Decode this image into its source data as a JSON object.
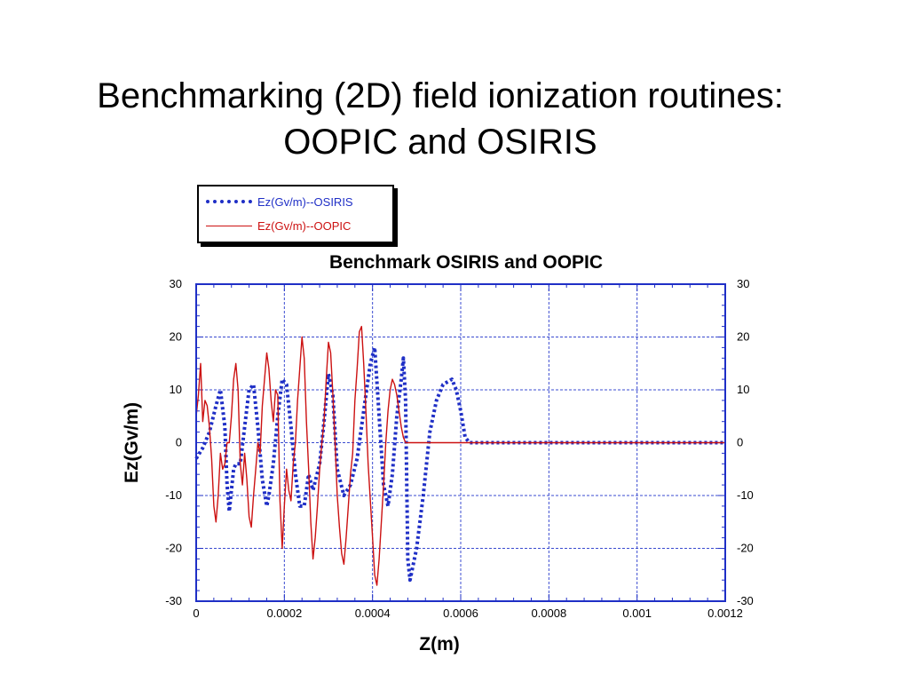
{
  "slide": {
    "title_line1": "Benchmarking (2D) field ionization routines:",
    "title_line2": "OOPIC and OSIRIS"
  },
  "legend": {
    "osiris_label": "Ez(Gv/m)--OSIRIS",
    "oopic_label": "Ez(Gv/m)--OOPIC"
  },
  "colors": {
    "osiris": "#1f2fc6",
    "oopic": "#cc1111",
    "grid": "#3a4bd0",
    "frame": "#1f2fc6"
  },
  "chart_data": {
    "type": "line",
    "title": "Benchmark OSIRIS and OOPIC",
    "xlabel": "Z(m)",
    "ylabel": "Ez(Gv/m)",
    "xlim": [
      0,
      0.0012
    ],
    "ylim": [
      -30,
      30
    ],
    "xticks": [
      "0",
      "0.0002",
      "0.0004",
      "0.0006",
      "0.0008",
      "0.001",
      "0.0012"
    ],
    "yticks": [
      "30",
      "20",
      "10",
      "0",
      "-10",
      "-20",
      "-30"
    ],
    "grid": true,
    "legend_position": "top-left",
    "series": [
      {
        "name": "Ez(Gv/m)--OSIRIS",
        "style": "dotted",
        "x": [
          0,
          1.5e-05,
          3e-05,
          4.5e-05,
          5.5e-05,
          6.5e-05,
          7e-05,
          7.5e-05,
          8e-05,
          8.5e-05,
          9e-05,
          0.0001,
          0.00011,
          0.00012,
          0.00013,
          0.00014,
          0.00015,
          0.00016,
          0.000165,
          0.000175,
          0.000185,
          0.000195,
          0.000205,
          0.000215,
          0.000225,
          0.000235,
          0.000245,
          0.000255,
          0.000265,
          0.00028,
          0.00029,
          0.0003,
          0.00031,
          0.00032,
          0.000335,
          0.00035,
          0.000365,
          0.00038,
          0.000395,
          0.000405,
          0.000415,
          0.000425,
          0.000435,
          0.000445,
          0.000455,
          0.000465,
          0.00047,
          0.000475,
          0.00048,
          0.000485,
          0.0005,
          0.000515,
          0.00053,
          0.000545,
          0.00056,
          0.00058,
          0.00059,
          0.0006,
          0.00061,
          0.00062,
          0.0008,
          0.001,
          0.0012
        ],
        "y": [
          -3,
          -1,
          2,
          7,
          10,
          3,
          -8,
          -13,
          -9,
          -5,
          -4,
          -4,
          3,
          10,
          11,
          3,
          -7,
          -12,
          -10,
          -4,
          5,
          12,
          11,
          3,
          -6,
          -12,
          -12,
          -6,
          -9,
          -4,
          4,
          13,
          9,
          -5,
          -10,
          -8,
          -3,
          6,
          15,
          18,
          5,
          -8,
          -12,
          -6,
          5,
          12,
          16,
          8,
          -22,
          -26,
          -20,
          -10,
          2,
          8,
          11,
          12,
          10,
          6,
          1,
          0,
          0,
          0,
          0
        ]
      },
      {
        "name": "Ez(Gv/m)--OOPIC",
        "style": "solid",
        "x": [
          0,
          5e-06,
          1e-05,
          1.5e-05,
          2e-05,
          2.5e-05,
          3e-05,
          3.5e-05,
          4e-05,
          4.5e-05,
          5e-05,
          5.5e-05,
          6e-05,
          6.5e-05,
          7e-05,
          7.5e-05,
          8e-05,
          8.5e-05,
          9e-05,
          9.5e-05,
          0.0001,
          0.000105,
          0.00011,
          0.000115,
          0.00012,
          0.000125,
          0.00013,
          0.000135,
          0.00014,
          0.000145,
          0.00015,
          0.000155,
          0.00016,
          0.000165,
          0.00017,
          0.000175,
          0.00018,
          0.000185,
          0.00019,
          0.000195,
          0.0002,
          0.000205,
          0.00021,
          0.000215,
          0.00022,
          0.000225,
          0.00023,
          0.000235,
          0.00024,
          0.000245,
          0.00025,
          0.000255,
          0.00026,
          0.000265,
          0.00027,
          0.000275,
          0.00028,
          0.000285,
          0.00029,
          0.000295,
          0.0003,
          0.000305,
          0.00031,
          0.000315,
          0.00032,
          0.000325,
          0.00033,
          0.000335,
          0.00034,
          0.000345,
          0.00035,
          0.000355,
          0.00036,
          0.000365,
          0.00037,
          0.000375,
          0.00038,
          0.000385,
          0.00039,
          0.000395,
          0.0004,
          0.000405,
          0.00041,
          0.000415,
          0.00042,
          0.000425,
          0.00043,
          0.000435,
          0.00044,
          0.000445,
          0.00045,
          0.000455,
          0.00046,
          0.000465,
          0.00047,
          0.000475,
          0.00048,
          0.000485,
          0.00049,
          0.000495,
          0.0005,
          0.000505,
          0.00051,
          0.000515,
          0.00052,
          0.000525,
          0.00053,
          0.000535,
          0.00054,
          0.000545,
          0.00055,
          0.000555,
          0.00056,
          0.000565,
          0.00057,
          0.000575,
          0.00058,
          0.000585,
          0.00059,
          0.000595,
          0.0006,
          0.000605,
          0.00061,
          0.00062,
          0.0008,
          0.001,
          0.0012
        ],
        "y": [
          5,
          9,
          15,
          4,
          8,
          7,
          3,
          -3,
          -12,
          -15,
          -10,
          -2,
          -5,
          -4,
          0,
          0,
          5,
          12,
          15,
          10,
          -4,
          -8,
          -2,
          -7,
          -14,
          -16,
          -10,
          -5,
          0,
          -2,
          7,
          12,
          17,
          14,
          8,
          4,
          10,
          9,
          -11,
          -20,
          -12,
          -5,
          -9,
          -11,
          -4,
          0,
          8,
          14,
          20,
          16,
          4,
          -5,
          -15,
          -22,
          -18,
          -12,
          -5,
          0,
          4,
          12,
          19,
          17,
          9,
          0,
          -10,
          -16,
          -21,
          -23,
          -18,
          -12,
          -6,
          -2,
          8,
          14,
          21,
          22,
          15,
          6,
          -4,
          -11,
          -18,
          -25,
          -27,
          -22,
          -15,
          -8,
          0,
          6,
          10,
          12,
          11,
          9,
          6,
          3,
          1,
          0,
          0,
          0,
          0,
          0,
          0,
          0,
          0,
          0,
          0,
          0,
          0,
          0,
          0,
          0,
          0,
          0,
          0,
          0,
          0,
          0,
          0,
          0,
          0,
          0,
          0,
          0,
          0,
          0,
          0,
          0,
          0
        ]
      }
    ]
  }
}
